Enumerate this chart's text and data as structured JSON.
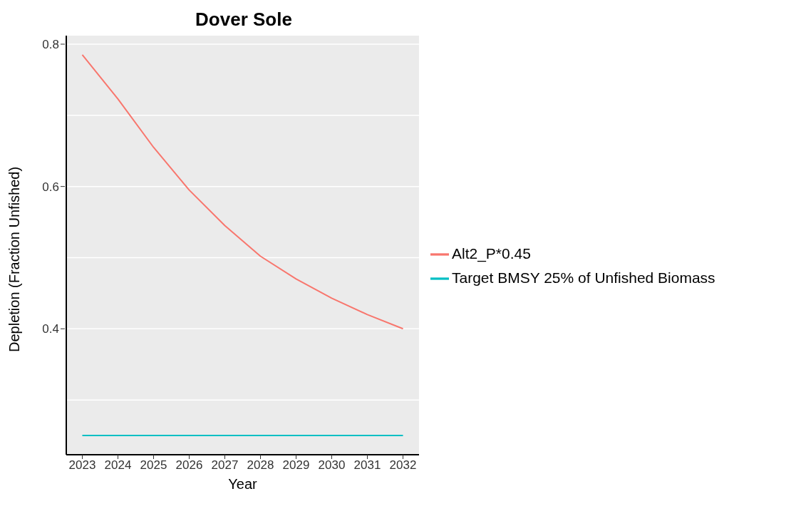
{
  "chart_data": {
    "type": "line",
    "title": "Dover Sole",
    "xlabel": "Year",
    "ylabel": "Depletion (Fraction Unfished)",
    "x": [
      2023,
      2024,
      2025,
      2026,
      2027,
      2028,
      2029,
      2030,
      2031,
      2032
    ],
    "series": [
      {
        "name": "Alt2_P*0.45",
        "color": "#f8766d",
        "values": [
          0.785,
          0.723,
          0.655,
          0.595,
          0.545,
          0.502,
          0.47,
          0.443,
          0.42,
          0.4
        ]
      },
      {
        "name": "Target BMSY 25% of Unfished Biomass",
        "color": "#00bfc4",
        "values": [
          0.25,
          0.25,
          0.25,
          0.25,
          0.25,
          0.25,
          0.25,
          0.25,
          0.25,
          0.25
        ]
      }
    ],
    "xlim": [
      2022.55,
      2032.45
    ],
    "xticks": [
      2023,
      2024,
      2025,
      2026,
      2027,
      2028,
      2029,
      2030,
      2031,
      2032
    ],
    "ylim": [
      0.223,
      0.812
    ],
    "yticks": [
      {
        "value": 0.3,
        "label": null
      },
      0.4,
      {
        "value": 0.5,
        "label": null
      },
      0.6,
      {
        "value": 0.7,
        "label": null
      },
      0.8
    ],
    "grid": "y",
    "legend": "right",
    "marker": "none",
    "line_style": "solid"
  }
}
